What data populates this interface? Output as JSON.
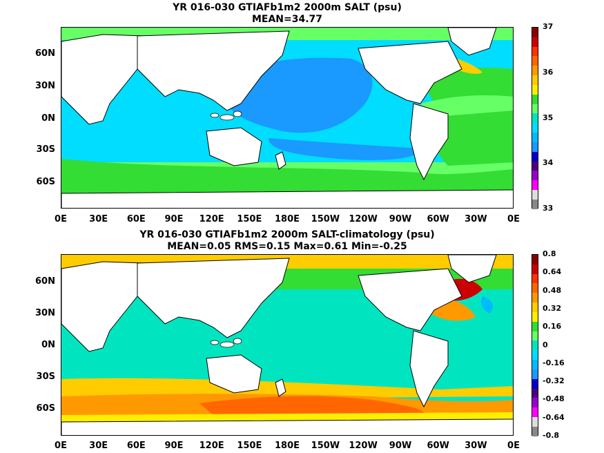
{
  "top": {
    "title_line1": "YR 016-030 GTIAFb1m2 2000m SALT (psu)",
    "title_line2": "MEAN=34.77",
    "colorbar_labels": [
      "37",
      "36",
      "35",
      "34",
      "33"
    ],
    "colorbar_colors": [
      "#8b0000",
      "#cc0000",
      "#ff3300",
      "#ff6600",
      "#ff9900",
      "#ffcc00",
      "#ffee00",
      "#33dd33",
      "#66ff66",
      "#00e5c0",
      "#00ddff",
      "#00bbff",
      "#1a99ff",
      "#0000cc",
      "#4b0082",
      "#9900cc",
      "#ff00ff",
      "#dddddd",
      "#888888"
    ]
  },
  "bottom": {
    "title_line1": "YR 016-030 GTIAFb1m2 2000m SALT-climatology (psu)",
    "title_line2": "MEAN=0.05   RMS=0.15   Max=0.61   Min=-0.25",
    "colorbar_labels": [
      "0.8",
      "0.64",
      "0.48",
      "0.32",
      "0.16",
      "0",
      "-0.16",
      "-0.32",
      "-0.48",
      "-0.64",
      "-0.8"
    ],
    "colorbar_colors": [
      "#8b0000",
      "#cc0000",
      "#ff3300",
      "#ff6600",
      "#ff9900",
      "#ffcc00",
      "#ffee00",
      "#33dd33",
      "#66ff66",
      "#00e5c0",
      "#00ddff",
      "#00bbff",
      "#1a99ff",
      "#0000cc",
      "#4b0082",
      "#9900cc",
      "#ff00ff",
      "#dddddd",
      "#888888"
    ]
  },
  "axes": {
    "lat_labels": [
      "60N",
      "30N",
      "0N",
      "30S",
      "60S"
    ],
    "lon_labels": [
      "0E",
      "30E",
      "60E",
      "90E",
      "120E",
      "150E",
      "180E",
      "150W",
      "120W",
      "90W",
      "60W",
      "30W",
      "0E"
    ]
  }
}
